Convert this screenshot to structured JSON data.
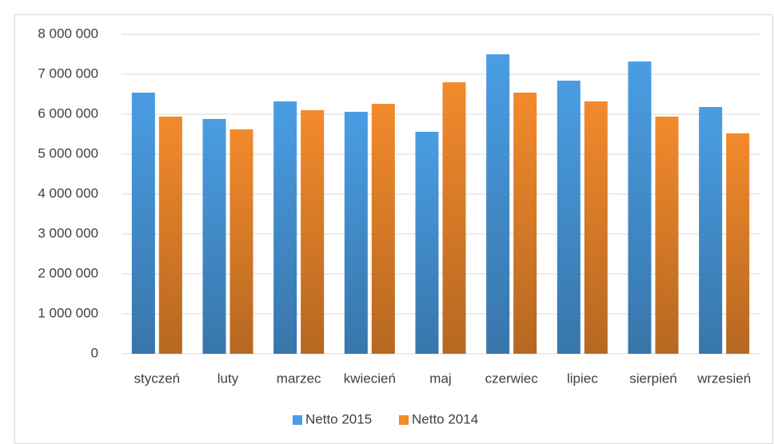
{
  "chart_data": {
    "type": "bar",
    "categories": [
      "styczeń",
      "luty",
      "marzec",
      "kwiecień",
      "maj",
      "czerwiec",
      "lipiec",
      "sierpień",
      "wrzesień"
    ],
    "series": [
      {
        "name": "Netto 2015",
        "color": "#4a9de3",
        "values": [
          6540000,
          5880000,
          6320000,
          6060000,
          5560000,
          7500000,
          6840000,
          7320000,
          6180000
        ]
      },
      {
        "name": "Netto 2014",
        "color": "#f28a2c",
        "values": [
          5940000,
          5620000,
          6100000,
          6260000,
          6800000,
          6540000,
          6320000,
          5940000,
          5520000
        ]
      }
    ],
    "ylim": [
      0,
      8000000
    ],
    "yticks": [
      0,
      {
        "value": 1000000,
        "label": "1 000 000"
      },
      {
        "value": 2000000,
        "label": "2 000 000"
      },
      {
        "value": 3000000,
        "label": "3 000 000"
      },
      {
        "value": 4000000,
        "label": "4 000 000"
      },
      {
        "value": 5000000,
        "label": "5 000 000"
      },
      {
        "value": 6000000,
        "label": "6 000 000"
      },
      {
        "value": 7000000,
        "label": "7 000 000"
      },
      {
        "value": 8000000,
        "label": "8 000 000"
      }
    ],
    "grid": true,
    "legend": "bottom"
  }
}
